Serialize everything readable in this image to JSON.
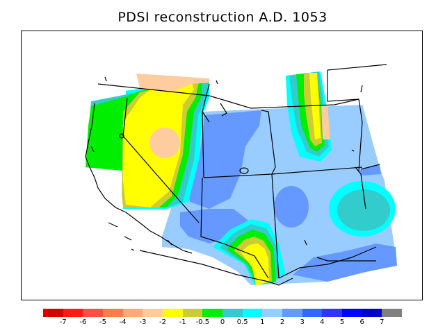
{
  "title": "PDSI reconstruction A.D. 1053",
  "legend": {
    "colors": [
      "#d40000",
      "#ff1a1a",
      "#ff4d4d",
      "#ff7a4d",
      "#ffa87a",
      "#ffcca0",
      "#ffff00",
      "#cccc33",
      "#00ee00",
      "#33cccc",
      "#00ffff",
      "#99ccff",
      "#6699ff",
      "#3366ff",
      "#3333ff",
      "#0000ff",
      "#0000cc",
      "#808080"
    ],
    "labels": [
      "-7",
      "-6",
      "-5",
      "-4",
      "-3",
      "-2",
      "-1",
      "-0.5",
      "0",
      "0.5",
      "1",
      "2",
      "3",
      "4",
      "5",
      "6",
      "7"
    ]
  },
  "palette": {
    "dry_strong": "#ffcca0",
    "dry": "#ffff00",
    "dry_mild": "#cccc33",
    "neutral": "#00ee00",
    "wet_mild": "#33cccc",
    "wet_light": "#00ffff",
    "wet": "#99ccff",
    "wet_moderate": "#6699ff"
  }
}
